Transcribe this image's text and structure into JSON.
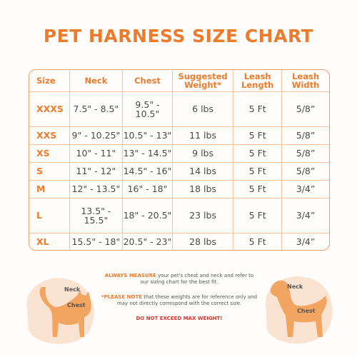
{
  "title": "PET HARNESS SIZE CHART",
  "table": {
    "header": [
      "Size",
      "Neck",
      "Chest",
      "Suggested Weight*",
      "Leash Length",
      "Leash Width"
    ],
    "rows": [
      [
        "XXXS",
        "7.5\" - 8.5\"",
        "9.5\" - 10.5\"",
        "6 lbs",
        "5 Ft",
        "5/8”"
      ],
      [
        "XXS",
        "9\" - 10.25\"",
        "10.5\" - 13\"",
        "11 lbs",
        "5 Ft",
        "5/8”"
      ],
      [
        "XS",
        "10\" - 11\"",
        "13\" - 14.5\"",
        "9 lbs",
        "5 Ft",
        "5/8”"
      ],
      [
        "S",
        "11\" - 12\"",
        "14.5\" - 16\"",
        "14 lbs",
        "5 Ft",
        "5/8”"
      ],
      [
        "M",
        "12\" - 13.5\"",
        "16\" - 18\"",
        "18 lbs",
        "5 Ft",
        "3/4”"
      ],
      [
        "L",
        "13.5\" - 15.5\"",
        "18\" - 20.5\"",
        "23 lbs",
        "5 Ft",
        "3/4”"
      ],
      [
        "XL",
        "15.5\" - 18\"",
        "20.5\" - 23\"",
        "28 lbs",
        "5 Ft",
        "3/4”"
      ]
    ]
  },
  "notes": [
    {
      "lead": "ALWAYS MEASURE",
      "text": "your pet's chest and neck and refer to our sizing chart for the best fit."
    },
    {
      "lead": "*PLEASE NOTE",
      "text": "that these weights are for reference only and may not directly correspond with the correct size."
    }
  ],
  "warning": "DO NOT EXCEED MAX WEIGHT!",
  "cat": {
    "neck": "Neck",
    "chest": "Chest"
  },
  "dog": {
    "neck": "Neck",
    "chest": "Chest"
  }
}
